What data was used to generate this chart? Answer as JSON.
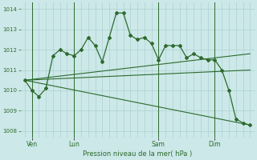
{
  "bg_color": "#cce8e8",
  "grid_color": "#a8cccc",
  "line_color": "#2d6a2d",
  "title": "Pression niveau de la mer( hPa )",
  "ylabel_ticks": [
    1008,
    1009,
    1010,
    1011,
    1012,
    1013,
    1014
  ],
  "ylim": [
    1007.7,
    1014.3
  ],
  "xlim": [
    -0.3,
    16.3
  ],
  "xtick_labels": [
    "Ven",
    "Lun",
    "Sam",
    "Dim"
  ],
  "xtick_positions": [
    0.5,
    3.5,
    9.5,
    13.5
  ],
  "vline_positions": [
    0.5,
    3.5,
    9.5,
    13.5
  ],
  "series1_x": [
    0.0,
    0.5,
    1.0,
    1.5,
    2.0,
    2.5,
    3.0,
    3.5,
    4.0,
    4.5,
    5.0,
    5.5,
    6.0,
    6.5,
    7.0,
    7.5,
    8.0,
    8.5,
    9.0,
    9.5,
    10.0,
    10.5,
    11.0,
    11.5,
    12.0,
    12.5,
    13.0,
    13.5,
    14.0,
    14.5,
    15.0,
    15.5,
    16.0
  ],
  "series1_y": [
    1010.5,
    1010.0,
    1009.7,
    1010.1,
    1011.7,
    1012.0,
    1011.8,
    1011.7,
    1012.0,
    1012.6,
    1012.2,
    1011.4,
    1012.6,
    1013.8,
    1013.8,
    1012.7,
    1012.5,
    1012.6,
    1012.3,
    1011.5,
    1012.2,
    1012.2,
    1012.2,
    1011.6,
    1011.8,
    1011.6,
    1011.5,
    1011.5,
    1011.0,
    1010.0,
    1008.6,
    1008.4,
    1008.3
  ],
  "line2_x": [
    0.0,
    16.0
  ],
  "line2_y": [
    1010.5,
    1011.8
  ],
  "line3_x": [
    0.0,
    16.0
  ],
  "line3_y": [
    1010.5,
    1011.0
  ],
  "line4_x": [
    0.0,
    16.0
  ],
  "line4_y": [
    1010.5,
    1008.3
  ],
  "figsize": [
    3.2,
    2.0
  ],
  "dpi": 100
}
